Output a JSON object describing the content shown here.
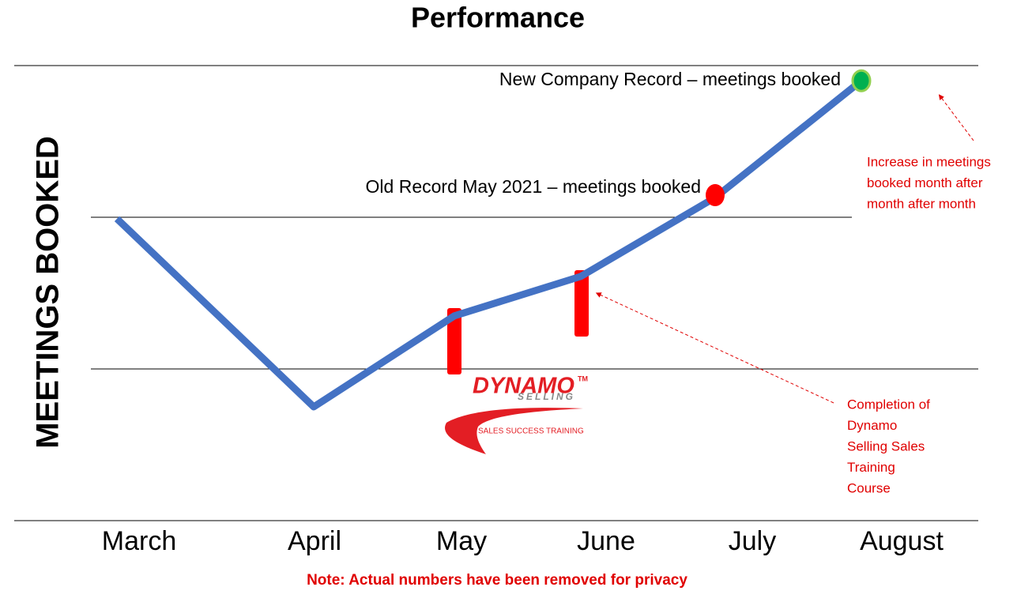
{
  "chart_data": {
    "type": "line",
    "title": "Performance",
    "y_label": "MEETINGS BOOKED",
    "categories": [
      "March",
      "April",
      "May",
      "June",
      "July",
      "August"
    ],
    "values": [
      1.99,
      0.75,
      1.35,
      1.61,
      2.13,
      2.9
    ],
    "color": "#4472c4",
    "ylim": [
      0,
      3
    ],
    "yticks": [
      0,
      1,
      2,
      3
    ],
    "grid": true,
    "annotations": {
      "new_record": "New Company Record – meetings booked",
      "old_record": "Old Record May 2021 – meetings booked",
      "increase": [
        "Increase in meetings",
        "booked month after",
        "month after month"
      ],
      "completion": [
        "Completion of",
        "Dynamo",
        "Selling Sales",
        "Training",
        "Course"
      ],
      "note": "Note:  Actual numbers have been removed for privacy"
    },
    "logo": {
      "name": "DYNAMO",
      "sub": "SELLING",
      "tm": "TM",
      "tagline": "SALES SUCCESS TRAINING"
    }
  }
}
